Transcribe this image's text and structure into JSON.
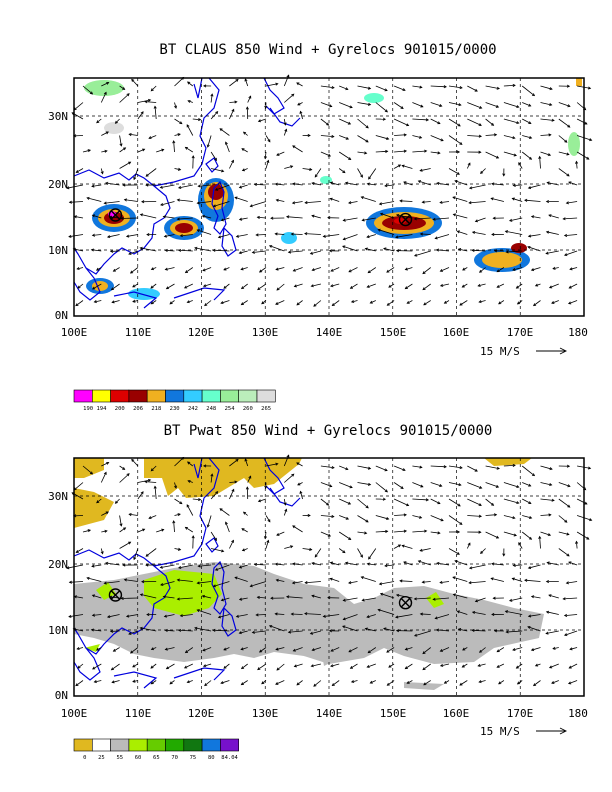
{
  "panels": [
    {
      "title": "BT CLAUS 850 Wind + Gyrelocs 901015/0000",
      "x_ticks": [
        "100E",
        "110E",
        "120E",
        "130E",
        "140E",
        "150E",
        "160E",
        "170E",
        "180"
      ],
      "y_ticks": [
        "0N",
        "10N",
        "20N",
        "30N"
      ],
      "reference_vector": "15 M/S",
      "gyre_markers": [
        {
          "lon": 106.5,
          "lat": 14.2
        },
        {
          "lon": 152.0,
          "lat": 13.5
        }
      ],
      "colorbar": {
        "labels": [
          "190",
          "194",
          "200",
          "206",
          "218",
          "230",
          "242",
          "248",
          "254",
          "260",
          "265"
        ],
        "colors": [
          "#ff00ff",
          "#ffff00",
          "#dd0000",
          "#990000",
          "#f0b020",
          "#1177dd",
          "#33ccff",
          "#66ffcc",
          "#99ee99",
          "#bbeebb",
          "#dddddd"
        ]
      }
    },
    {
      "title": "BT Pwat 850 Wind + Gyrelocs 901015/0000",
      "x_ticks": [
        "100E",
        "110E",
        "120E",
        "130E",
        "140E",
        "150E",
        "160E",
        "170E",
        "180"
      ],
      "y_ticks": [
        "0N",
        "10N",
        "20N",
        "30N"
      ],
      "reference_vector": "15 M/S",
      "gyre_markers": [
        {
          "lon": 106.5,
          "lat": 14.2
        },
        {
          "lon": 152.0,
          "lat": 13.0
        }
      ],
      "colorbar": {
        "labels": [
          "0",
          "25",
          "55",
          "60",
          "65",
          "70",
          "75",
          "80",
          "84.04"
        ],
        "colors": [
          "#e0b820",
          "#ffffff",
          "#bbbbbb",
          "#aaee00",
          "#66cc00",
          "#22aa00",
          "#117711",
          "#1177dd",
          "#7711cc"
        ]
      }
    }
  ]
}
